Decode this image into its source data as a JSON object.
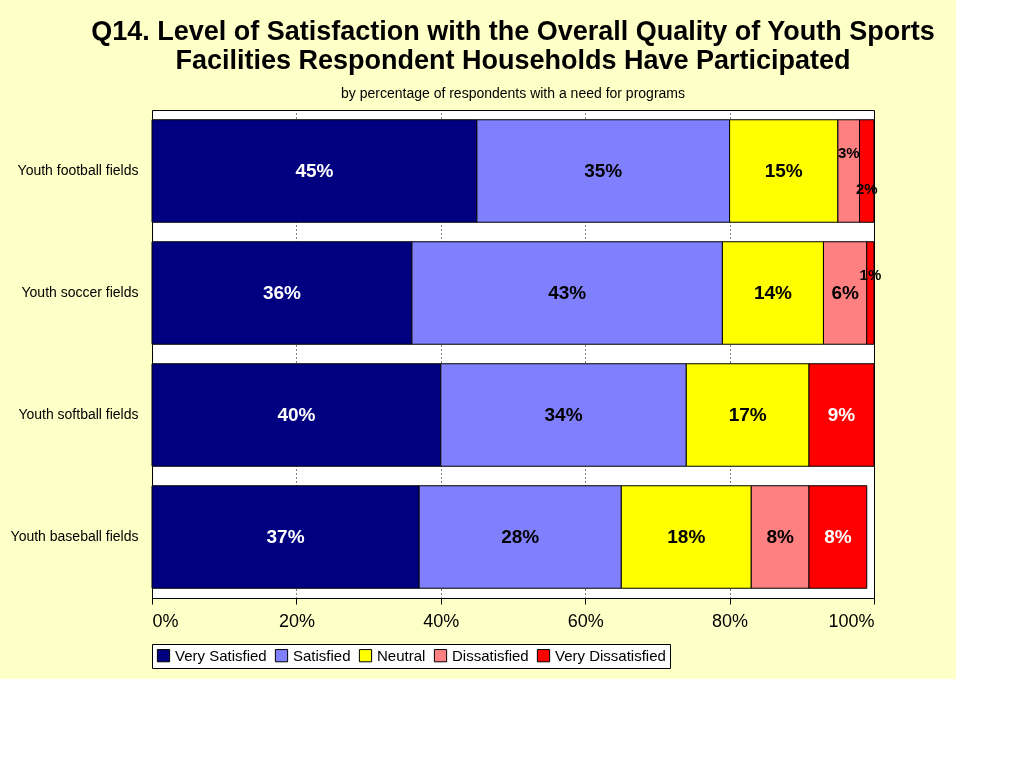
{
  "chart_data": {
    "type": "bar",
    "orientation": "horizontal",
    "stacked": true,
    "title": "Q14. Level of Satisfaction with the Overall Quality of Youth Sports\nFacilities Respondent Households Have Participated",
    "subtitle": "by percentage of respondents with a need for programs",
    "categories": [
      "Youth football fields",
      "Youth soccer fields",
      "Youth softball fields",
      "Youth baseball fields"
    ],
    "series": [
      {
        "name": "Very Satisfied",
        "color": "#000080",
        "values": [
          45,
          36,
          40,
          37
        ],
        "value_labels": [
          "45%",
          "36%",
          "40%",
          "37%"
        ]
      },
      {
        "name": "Satisfied",
        "color": "#8080ff",
        "values": [
          35,
          43,
          34,
          28
        ],
        "value_labels": [
          "35%",
          "43%",
          "34%",
          "28%"
        ]
      },
      {
        "name": "Neutral",
        "color": "#ffff00",
        "values": [
          15,
          14,
          17,
          18
        ],
        "value_labels": [
          "15%",
          "14%",
          "17%",
          "18%"
        ]
      },
      {
        "name": "Dissatisfied",
        "color": "#ff8080",
        "values": [
          3,
          6,
          null,
          8
        ],
        "value_labels": [
          "3%",
          "6%",
          null,
          "8%"
        ]
      },
      {
        "name": "Very Dissatisfied",
        "color": "#ff0000",
        "values": [
          2,
          1,
          9,
          8
        ],
        "value_labels": [
          "2%",
          "1%",
          "9%",
          "8%"
        ]
      }
    ],
    "xlim": [
      0,
      100
    ],
    "xticks": [
      {
        "value": 0,
        "label": "0%"
      },
      {
        "value": 20,
        "label": "20%"
      },
      {
        "value": 40,
        "label": "40%"
      },
      {
        "value": 60,
        "label": "60%"
      },
      {
        "value": 80,
        "label": "80%"
      },
      {
        "value": 100,
        "label": "100%"
      }
    ],
    "grid": "x",
    "legend": "bottom"
  }
}
